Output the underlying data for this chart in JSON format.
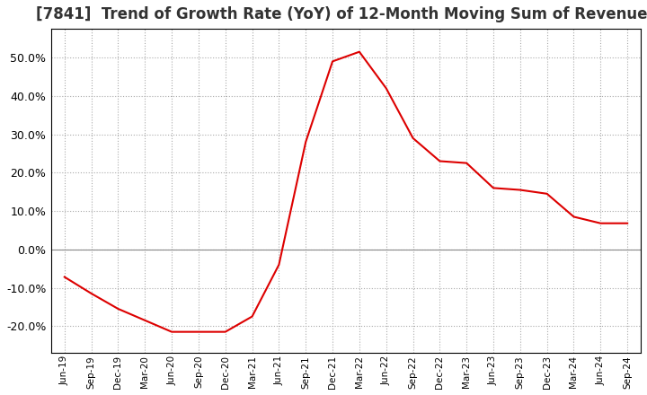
{
  "title": "[7841]  Trend of Growth Rate (YoY) of 12-Month Moving Sum of Revenues",
  "title_fontsize": 12,
  "line_color": "#dd0000",
  "zero_line_color": "#888888",
  "background_color": "#ffffff",
  "grid_color": "#aaaaaa",
  "plot_border_color": "#000000",
  "ylim": [
    -0.27,
    0.575
  ],
  "yticks": [
    -0.2,
    -0.1,
    0.0,
    0.1,
    0.2,
    0.3,
    0.4,
    0.5
  ],
  "dates_x": [
    0,
    1,
    2,
    3,
    4,
    5,
    6,
    7,
    8,
    9,
    10,
    11,
    12,
    13,
    14,
    15,
    16,
    17,
    18,
    19,
    20,
    21
  ],
  "values": [
    -0.072,
    -0.115,
    -0.155,
    -0.185,
    -0.215,
    -0.215,
    -0.215,
    -0.175,
    -0.04,
    0.28,
    0.49,
    0.515,
    0.42,
    0.29,
    0.23,
    0.225,
    0.16,
    0.155,
    0.145,
    0.085,
    0.068,
    0.068
  ],
  "xtick_labels": [
    "Jun-19",
    "Sep-19",
    "Dec-19",
    "Mar-20",
    "Jun-20",
    "Sep-20",
    "Dec-20",
    "Mar-21",
    "Jun-21",
    "Sep-21",
    "Dec-21",
    "Mar-22",
    "Jun-22",
    "Sep-22",
    "Dec-22",
    "Mar-23",
    "Jun-23",
    "Sep-23",
    "Dec-23",
    "Mar-24",
    "Jun-24",
    "Sep-24"
  ]
}
